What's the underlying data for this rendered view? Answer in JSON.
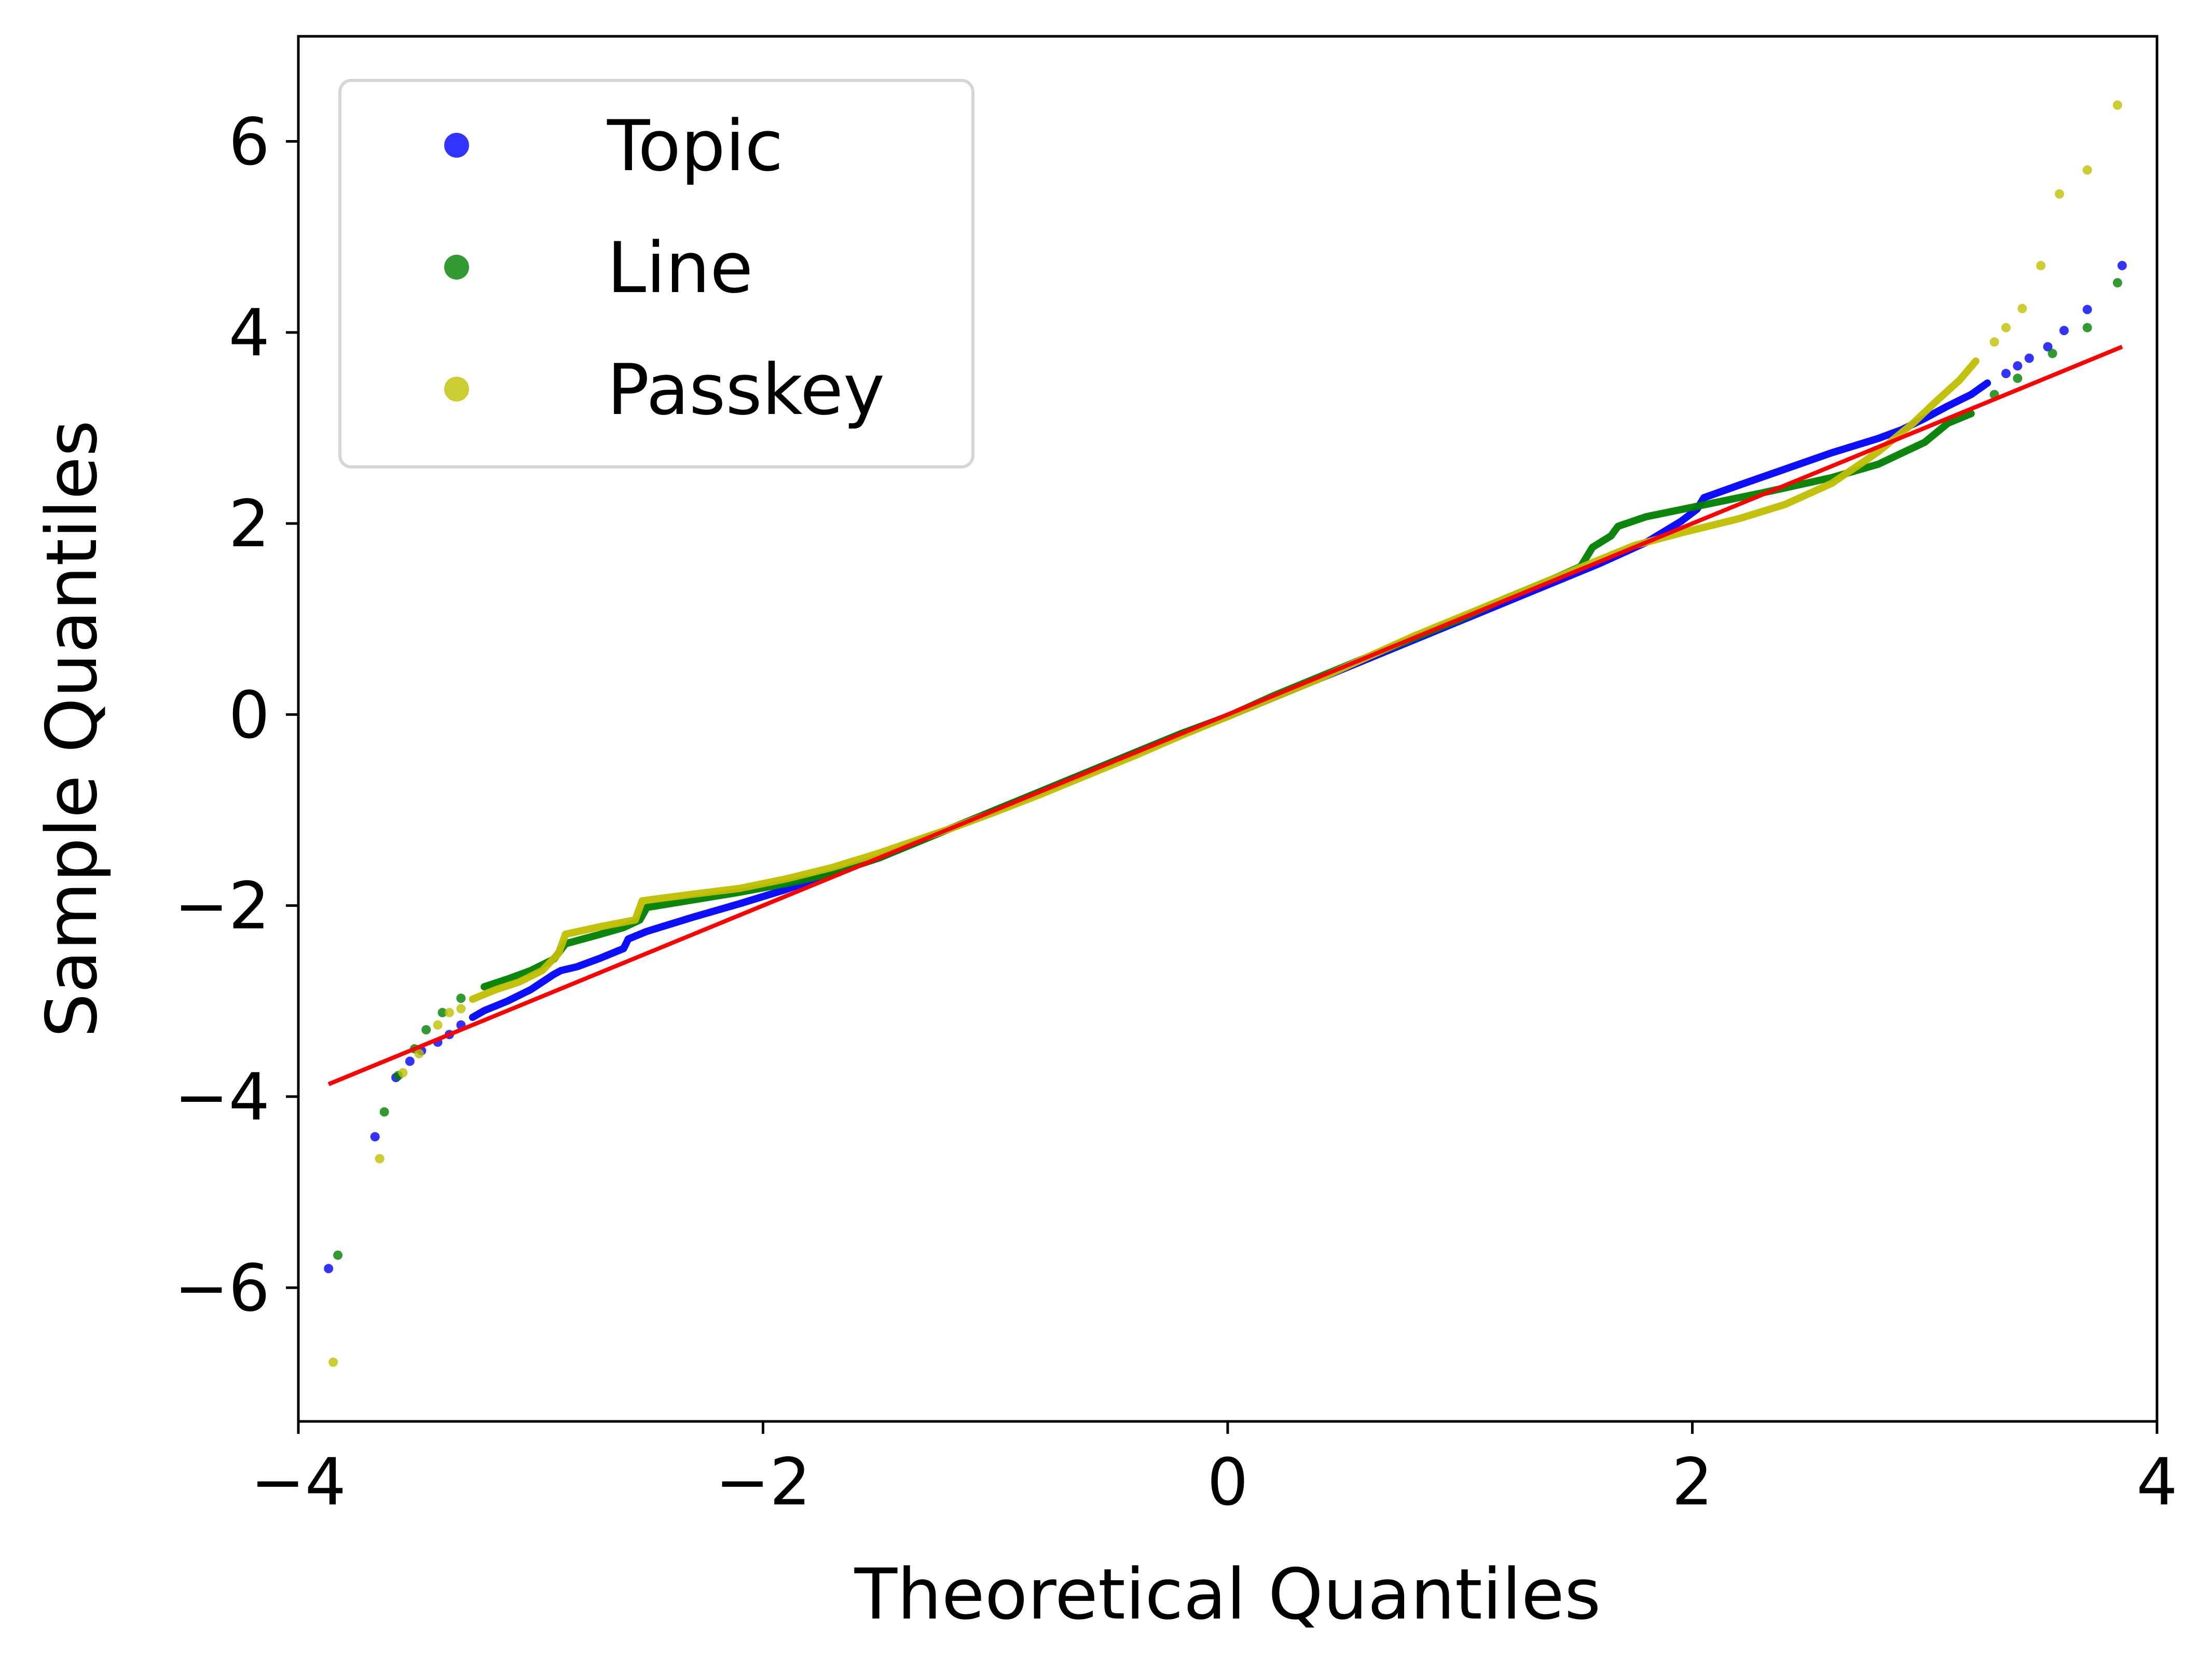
{
  "chart_data": {
    "type": "scatter",
    "title": "",
    "xlabel": "Theoretical Quantiles",
    "ylabel": "Sample Quantiles",
    "xlim": [
      -4.0,
      4.0
    ],
    "ylim": [
      -7.4,
      7.1
    ],
    "xticks": [
      -4,
      -2,
      0,
      2,
      4
    ],
    "yticks": [
      -6,
      -4,
      -2,
      0,
      2,
      4,
      6
    ],
    "xtick_labels": [
      "−4",
      "−2",
      "0",
      "2",
      "4"
    ],
    "ytick_labels": [
      "−6",
      "−4",
      "−2",
      "0",
      "2",
      "4",
      "6"
    ],
    "grid": false,
    "legend_position": "top-left",
    "series": [
      {
        "name": "Topic",
        "color": "#0000ff",
        "points": [
          [
            -3.87,
            -5.8
          ],
          [
            -3.67,
            -4.42
          ],
          [
            -3.58,
            -3.8
          ],
          [
            -3.52,
            -3.63
          ],
          [
            -3.47,
            -3.52
          ],
          [
            -3.4,
            -3.43
          ],
          [
            -3.35,
            -3.35
          ],
          [
            -3.3,
            -3.25
          ],
          [
            -3.25,
            -3.17
          ],
          [
            -3.2,
            -3.1
          ],
          [
            -3.1,
            -3.0
          ],
          [
            -3.0,
            -2.88
          ],
          [
            -2.95,
            -2.8
          ],
          [
            -2.9,
            -2.72
          ],
          [
            -2.87,
            -2.68
          ],
          [
            -2.8,
            -2.64
          ],
          [
            -2.7,
            -2.55
          ],
          [
            -2.6,
            -2.45
          ],
          [
            -2.58,
            -2.35
          ],
          [
            -2.5,
            -2.27
          ],
          [
            -2.3,
            -2.12
          ],
          [
            -2.1,
            -1.98
          ],
          [
            -1.9,
            -1.83
          ],
          [
            -1.7,
            -1.66
          ],
          [
            -1.5,
            -1.5
          ],
          [
            -1.2,
            -1.2
          ],
          [
            -1.0,
            -1.0
          ],
          [
            -0.8,
            -0.8
          ],
          [
            -0.6,
            -0.6
          ],
          [
            -0.4,
            -0.4
          ],
          [
            -0.2,
            -0.2
          ],
          [
            0.0,
            -0.02
          ],
          [
            0.2,
            0.18
          ],
          [
            0.4,
            0.38
          ],
          [
            0.6,
            0.58
          ],
          [
            0.8,
            0.78
          ],
          [
            1.0,
            0.98
          ],
          [
            1.2,
            1.18
          ],
          [
            1.4,
            1.38
          ],
          [
            1.6,
            1.58
          ],
          [
            1.8,
            1.8
          ],
          [
            1.95,
            2.02
          ],
          [
            2.02,
            2.15
          ],
          [
            2.05,
            2.27
          ],
          [
            2.2,
            2.4
          ],
          [
            2.4,
            2.57
          ],
          [
            2.6,
            2.74
          ],
          [
            2.8,
            2.89
          ],
          [
            2.9,
            2.98
          ],
          [
            3.0,
            3.1
          ],
          [
            3.1,
            3.23
          ],
          [
            3.2,
            3.35
          ],
          [
            3.27,
            3.47
          ],
          [
            3.35,
            3.57
          ],
          [
            3.4,
            3.65
          ],
          [
            3.45,
            3.73
          ],
          [
            3.53,
            3.85
          ],
          [
            3.6,
            4.02
          ],
          [
            3.7,
            4.24
          ],
          [
            3.85,
            4.7
          ]
        ]
      },
      {
        "name": "Line",
        "color": "#008000",
        "points": [
          [
            -3.83,
            -5.66
          ],
          [
            -3.63,
            -4.16
          ],
          [
            -3.57,
            -3.78
          ],
          [
            -3.5,
            -3.5
          ],
          [
            -3.45,
            -3.3
          ],
          [
            -3.38,
            -3.12
          ],
          [
            -3.3,
            -2.97
          ],
          [
            -3.2,
            -2.85
          ],
          [
            -3.1,
            -2.77
          ],
          [
            -3.0,
            -2.68
          ],
          [
            -2.9,
            -2.56
          ],
          [
            -2.85,
            -2.4
          ],
          [
            -2.7,
            -2.3
          ],
          [
            -2.6,
            -2.23
          ],
          [
            -2.53,
            -2.15
          ],
          [
            -2.5,
            -2.02
          ],
          [
            -2.3,
            -1.94
          ],
          [
            -2.1,
            -1.86
          ],
          [
            -1.9,
            -1.77
          ],
          [
            -1.7,
            -1.66
          ],
          [
            -1.5,
            -1.5
          ],
          [
            -1.2,
            -1.2
          ],
          [
            -1.0,
            -1.0
          ],
          [
            -0.8,
            -0.8
          ],
          [
            -0.6,
            -0.6
          ],
          [
            -0.4,
            -0.4
          ],
          [
            -0.2,
            -0.2
          ],
          [
            0.0,
            -0.02
          ],
          [
            0.2,
            0.2
          ],
          [
            0.4,
            0.4
          ],
          [
            0.6,
            0.6
          ],
          [
            0.8,
            0.8
          ],
          [
            1.0,
            1.0
          ],
          [
            1.2,
            1.22
          ],
          [
            1.4,
            1.42
          ],
          [
            1.52,
            1.55
          ],
          [
            1.57,
            1.75
          ],
          [
            1.65,
            1.87
          ],
          [
            1.68,
            1.97
          ],
          [
            1.8,
            2.07
          ],
          [
            2.0,
            2.17
          ],
          [
            2.3,
            2.32
          ],
          [
            2.6,
            2.48
          ],
          [
            2.8,
            2.62
          ],
          [
            3.0,
            2.85
          ],
          [
            3.1,
            3.05
          ],
          [
            3.2,
            3.15
          ],
          [
            3.3,
            3.35
          ],
          [
            3.4,
            3.52
          ],
          [
            3.55,
            3.78
          ],
          [
            3.7,
            4.05
          ],
          [
            3.83,
            4.52
          ]
        ]
      },
      {
        "name": "Passkey",
        "color": "#bfbf00",
        "points": [
          [
            -3.85,
            -6.78
          ],
          [
            -3.65,
            -4.65
          ],
          [
            -3.55,
            -3.75
          ],
          [
            -3.48,
            -3.55
          ],
          [
            -3.4,
            -3.25
          ],
          [
            -3.35,
            -3.12
          ],
          [
            -3.3,
            -3.08
          ],
          [
            -3.25,
            -2.98
          ],
          [
            -3.2,
            -2.93
          ],
          [
            -3.15,
            -2.88
          ],
          [
            -3.05,
            -2.8
          ],
          [
            -2.95,
            -2.68
          ],
          [
            -2.88,
            -2.5
          ],
          [
            -2.85,
            -2.3
          ],
          [
            -2.7,
            -2.22
          ],
          [
            -2.55,
            -2.15
          ],
          [
            -2.52,
            -1.95
          ],
          [
            -2.3,
            -1.88
          ],
          [
            -2.1,
            -1.82
          ],
          [
            -1.9,
            -1.72
          ],
          [
            -1.7,
            -1.6
          ],
          [
            -1.5,
            -1.45
          ],
          [
            -1.2,
            -1.2
          ],
          [
            -1.0,
            -1.02
          ],
          [
            -0.8,
            -0.83
          ],
          [
            -0.6,
            -0.63
          ],
          [
            -0.4,
            -0.43
          ],
          [
            -0.2,
            -0.22
          ],
          [
            0.0,
            -0.02
          ],
          [
            0.2,
            0.18
          ],
          [
            0.4,
            0.38
          ],
          [
            0.6,
            0.6
          ],
          [
            0.8,
            0.82
          ],
          [
            1.0,
            1.02
          ],
          [
            1.2,
            1.22
          ],
          [
            1.4,
            1.42
          ],
          [
            1.6,
            1.62
          ],
          [
            1.75,
            1.77
          ],
          [
            1.95,
            1.9
          ],
          [
            2.2,
            2.05
          ],
          [
            2.4,
            2.2
          ],
          [
            2.6,
            2.42
          ],
          [
            2.8,
            2.75
          ],
          [
            2.95,
            3.05
          ],
          [
            3.05,
            3.28
          ],
          [
            3.15,
            3.5
          ],
          [
            3.22,
            3.7
          ],
          [
            3.3,
            3.9
          ],
          [
            3.35,
            4.05
          ],
          [
            3.42,
            4.25
          ],
          [
            3.5,
            4.7
          ],
          [
            3.58,
            5.45
          ],
          [
            3.7,
            5.7
          ],
          [
            3.83,
            6.38
          ]
        ]
      },
      {
        "name": "",
        "color": "#ff0000",
        "kind": "line",
        "points": [
          [
            -3.87,
            -3.87
          ],
          [
            3.85,
            3.85
          ]
        ]
      }
    ]
  }
}
